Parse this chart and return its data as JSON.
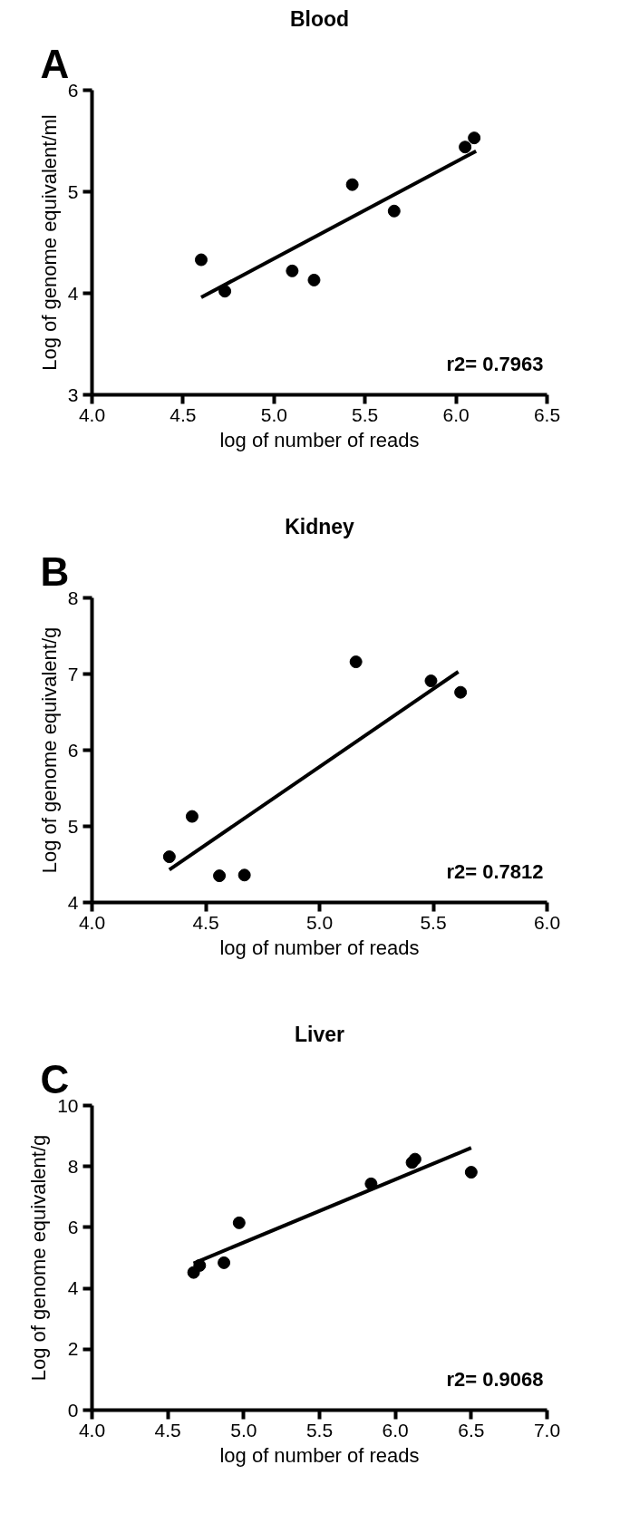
{
  "chart_data": [
    {
      "type": "scatter",
      "title": "Blood",
      "xlabel": "log of number of reads",
      "ylabel": "Log of genome equivalent/ml",
      "annotations": [
        "A",
        "r2= 0.7963"
      ],
      "marker": "circle",
      "grid": false,
      "xlim": [
        4.0,
        6.5
      ],
      "ylim": [
        3,
        6
      ],
      "xticks": [
        {
          "value": 4,
          "label": "4.0"
        },
        4.5,
        {
          "value": 5,
          "label": "5.0"
        },
        5.5,
        {
          "value": 6,
          "label": "6.0"
        },
        6.5
      ],
      "yticks": [
        3,
        4,
        5,
        6
      ],
      "series": [
        {
          "type": "scatter",
          "color": "#000000",
          "x": [
            4.6,
            4.73,
            5.1,
            5.22,
            5.43,
            5.66,
            6.05,
            6.1
          ],
          "values": [
            4.33,
            4.02,
            4.22,
            4.13,
            5.07,
            4.81,
            5.44,
            5.53
          ]
        },
        {
          "type": "line",
          "color": "#000000",
          "marker": "none",
          "x": [
            4.6,
            6.11
          ],
          "values": [
            3.96,
            5.4
          ]
        }
      ]
    },
    {
      "type": "scatter",
      "title": "Kidney",
      "xlabel": "log of number of reads",
      "ylabel": "Log of genome equivalent/g",
      "annotations": [
        "B",
        "r2= 0.7812"
      ],
      "marker": "circle",
      "grid": false,
      "xlim": [
        4.0,
        6.0
      ],
      "ylim": [
        4,
        8
      ],
      "xticks": [
        {
          "value": 4,
          "label": "4.0"
        },
        4.5,
        {
          "value": 5,
          "label": "5.0"
        },
        5.5,
        {
          "value": 6,
          "label": "6.0"
        }
      ],
      "yticks": [
        4,
        5,
        6,
        7,
        8
      ],
      "series": [
        {
          "type": "scatter",
          "color": "#000000",
          "x": [
            4.34,
            4.44,
            4.56,
            4.67,
            5.16,
            5.49,
            5.62
          ],
          "values": [
            4.6,
            5.13,
            4.35,
            4.36,
            7.16,
            6.91,
            6.76
          ]
        },
        {
          "type": "line",
          "color": "#000000",
          "marker": "none",
          "x": [
            4.34,
            5.61
          ],
          "values": [
            4.43,
            7.03
          ]
        }
      ]
    },
    {
      "type": "scatter",
      "title": "Liver",
      "xlabel": "log of number of reads",
      "ylabel": "Log of genome equivalent/g",
      "annotations": [
        "C",
        "r2= 0.9068"
      ],
      "marker": "circle",
      "grid": false,
      "xlim": [
        4.0,
        7.0
      ],
      "ylim": [
        0,
        10
      ],
      "xticks": [
        {
          "value": 4,
          "label": "4.0"
        },
        4.5,
        {
          "value": 5,
          "label": "5.0"
        },
        5.5,
        {
          "value": 6,
          "label": "6.0"
        },
        6.5,
        {
          "value": 7,
          "label": "7.0"
        }
      ],
      "yticks": [
        0,
        2,
        4,
        6,
        8,
        10
      ],
      "series": [
        {
          "type": "scatter",
          "color": "#000000",
          "x": [
            4.67,
            4.71,
            4.87,
            4.97,
            5.84,
            6.11,
            6.13,
            6.5
          ],
          "values": [
            4.52,
            4.75,
            4.84,
            6.15,
            7.43,
            8.13,
            8.24,
            7.81
          ]
        },
        {
          "type": "line",
          "color": "#000000",
          "marker": "none",
          "x": [
            4.67,
            6.5
          ],
          "values": [
            4.82,
            8.61
          ]
        }
      ]
    }
  ]
}
